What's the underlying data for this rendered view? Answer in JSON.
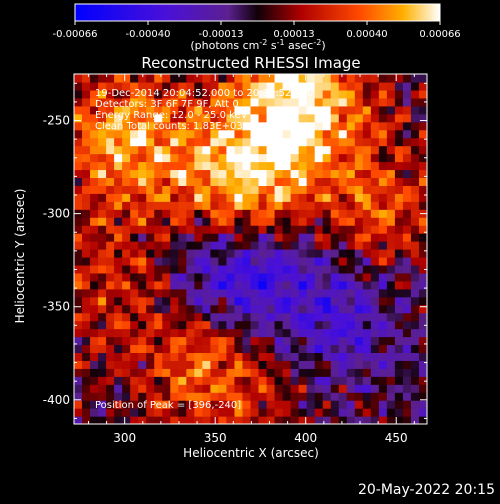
{
  "chart_data": {
    "type": "heatmap",
    "title": "Reconstructed RHESSI Image",
    "xlabel": "Heliocentric X (arcsec)",
    "ylabel": "Heliocentric Y (arcsec)",
    "xlim": [
      272,
      467
    ],
    "ylim": [
      -413,
      -225
    ],
    "xticks": [
      300,
      350,
      400,
      450
    ],
    "yticks": [
      -250,
      -300,
      -350,
      -400
    ],
    "colorbar": {
      "min": -0.00066,
      "max": 0.00066,
      "ticks": [
        "-0.00066",
        "-0.00040",
        "-0.00013",
        "0.00013",
        "0.00040",
        "0.00066"
      ],
      "label_parts": [
        "(photons cm",
        "-2",
        " s",
        "-1",
        " asec",
        "-2",
        ")"
      ]
    },
    "annotations": [
      "19-Dec-2014 20:04:52.000 to 20:10:52.000",
      "Detectors: 3F 6F 7F 9F, Att 0",
      "Energy Range: 12.0 - 25.0 keV",
      "Clean     Total counts: 1.83E+03"
    ],
    "peak_label": "Position of Peak = [396,-240]",
    "peak": [
      396,
      -240
    ],
    "sources": [
      {
        "x": 396,
        "y": -240,
        "amp": 0.00066
      },
      {
        "x": 363,
        "y": -283,
        "amp": 0.00058
      },
      {
        "x": 300,
        "y": -260,
        "amp": 0.0005
      },
      {
        "x": 350,
        "y": -384,
        "amp": 0.00042
      },
      {
        "x": 440,
        "y": -300,
        "amp": 0.00034
      },
      {
        "x": 290,
        "y": -340,
        "amp": 0.00024
      }
    ],
    "negative_regions": [
      {
        "x": 362,
        "y": -332,
        "amp": -0.00045
      },
      {
        "x": 420,
        "y": -350,
        "amp": -0.0003
      }
    ]
  },
  "timestamp": "20-May-2022 20:15",
  "colors": {
    "background": "#000000",
    "foreground": "#ffffff"
  }
}
